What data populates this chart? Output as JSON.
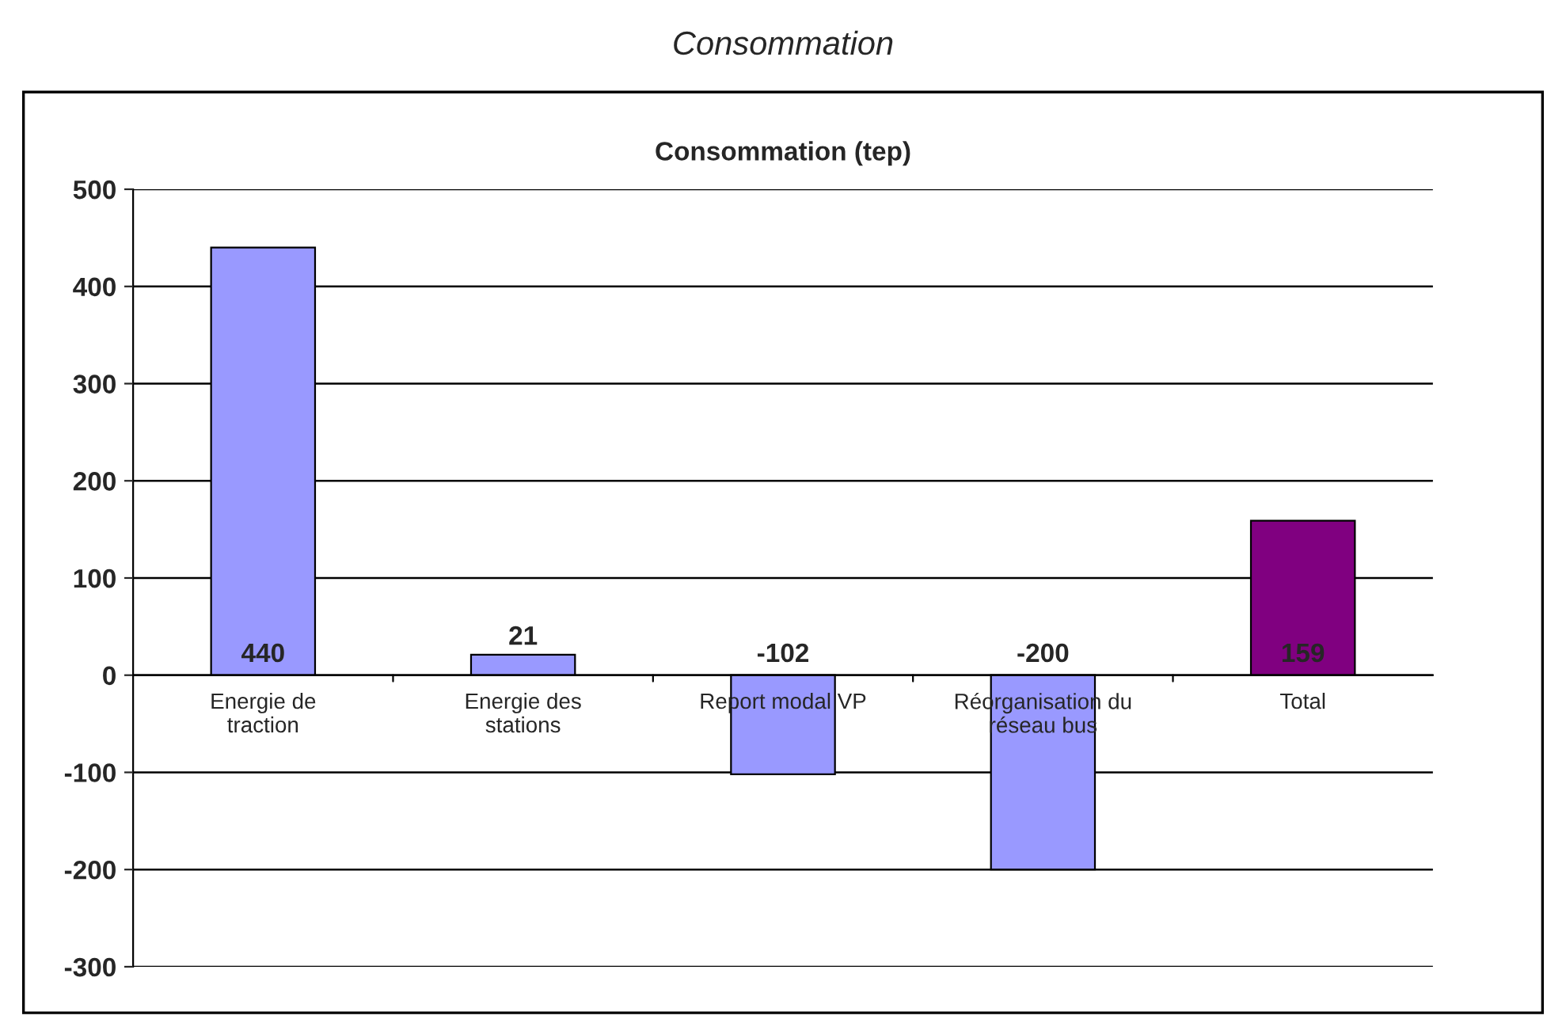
{
  "chart_data": {
    "type": "bar",
    "title": "Consommation",
    "subtitle": "Consommation (tep)",
    "categories": [
      "Energie de\ntraction",
      "Energie des\nstations",
      "Report modal VP",
      "Réorganisation du\nréseau bus",
      "Total"
    ],
    "values": [
      440,
      21,
      -102,
      -200,
      159
    ],
    "colors": [
      "#9999ff",
      "#9999ff",
      "#9999ff",
      "#9999ff",
      "#800080"
    ],
    "ylim": [
      -300,
      500
    ],
    "yticks": [
      -300,
      -200,
      -100,
      0,
      100,
      200,
      300,
      400,
      500
    ],
    "grid": "y",
    "data_labels": true,
    "legend": false
  }
}
